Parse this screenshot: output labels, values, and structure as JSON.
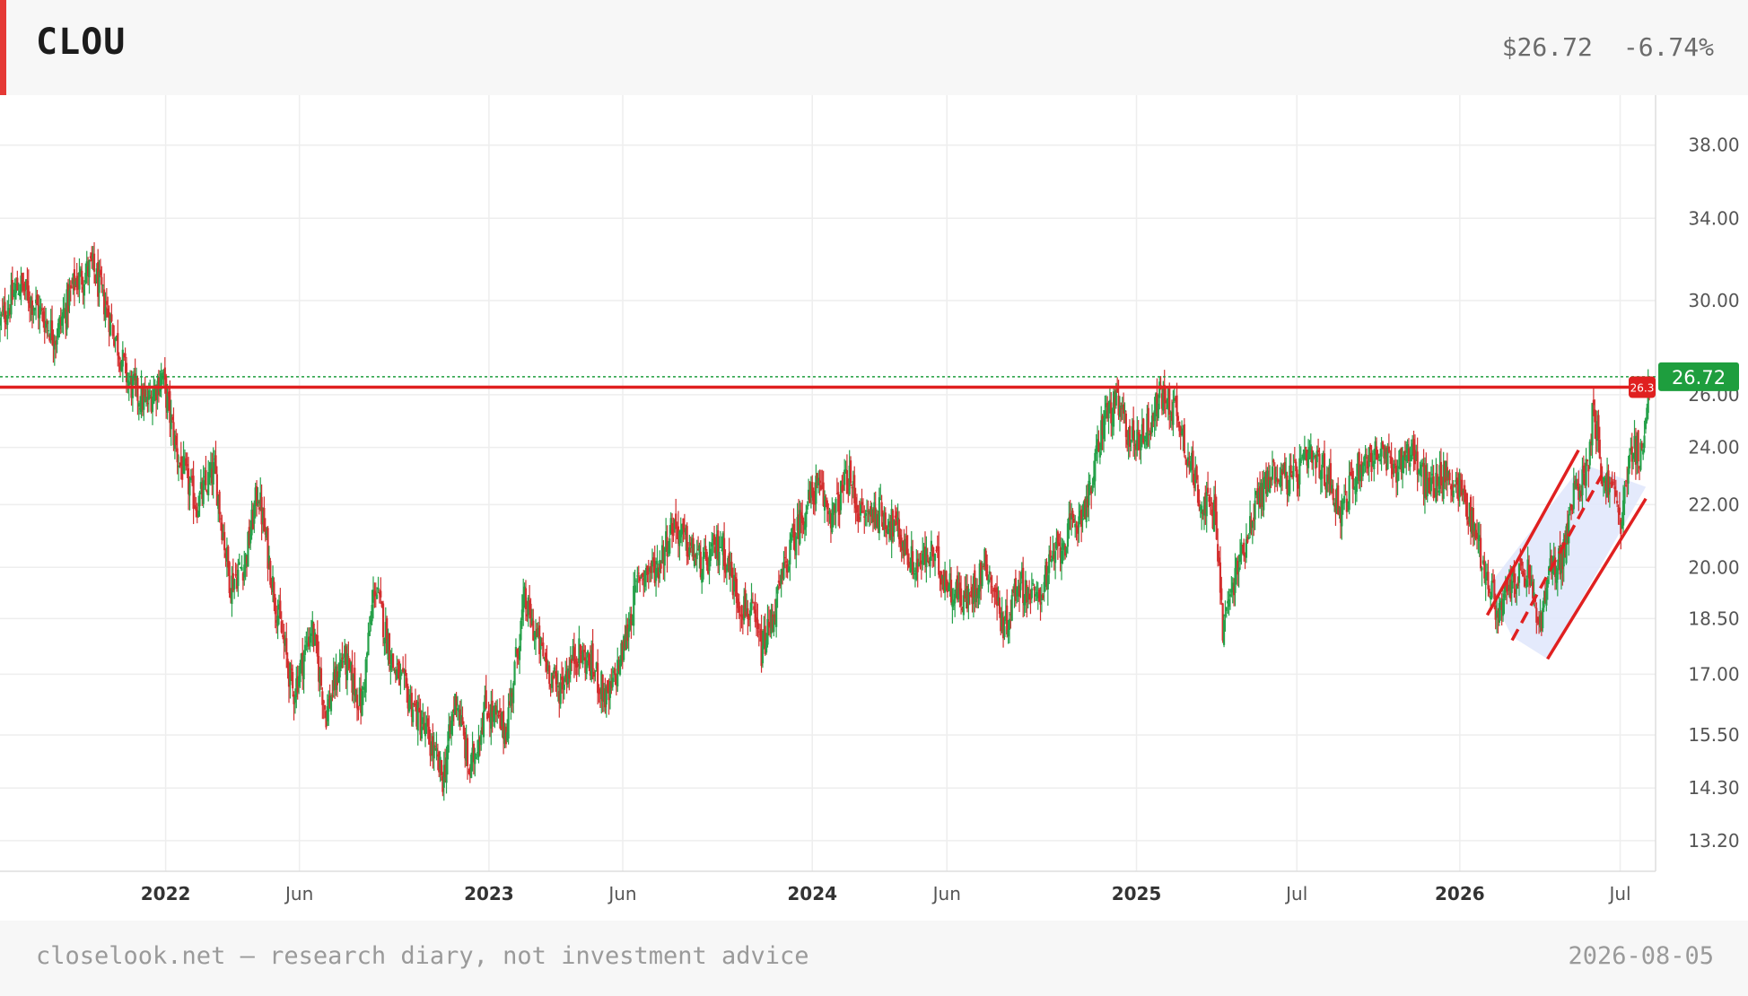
{
  "header": {
    "ticker": "CLOU",
    "price": "$26.72",
    "change": "-6.74%"
  },
  "footer": {
    "source": "closelook.net — research diary, not investment advice",
    "date": "2026-08-05"
  },
  "colors": {
    "up": "#26a14a",
    "down": "#d32f2f",
    "level_line": "#e02020",
    "last_price_tag": "#1e9e3e",
    "channel_fill": "#dfe6fb",
    "accent": "#e53935"
  },
  "chart_data": {
    "type": "candlestick",
    "title": "",
    "xlabel": "",
    "ylabel": "",
    "y_scale": "log",
    "ylim": [
      12.6,
      41.0
    ],
    "yticks": [
      13.2,
      14.3,
      15.5,
      17.0,
      18.5,
      20.0,
      22.0,
      24.0,
      26.0,
      30.0,
      34.0,
      38.0
    ],
    "ytick_labels": [
      "13.20",
      "14.30",
      "15.50",
      "17.00",
      "18.50",
      "20.00",
      "22.00",
      "24.00",
      "26.00",
      "30.00",
      "34.00",
      "38.00"
    ],
    "xlim": [
      "2021-06-28",
      "2026-08-10"
    ],
    "xticks": [
      {
        "date": "2022-01-01",
        "label": "2022",
        "major": true
      },
      {
        "date": "2022-06-01",
        "label": "Jun",
        "major": false
      },
      {
        "date": "2023-01-01",
        "label": "2023",
        "major": true
      },
      {
        "date": "2023-06-01",
        "label": "Jun",
        "major": false
      },
      {
        "date": "2024-01-01",
        "label": "2024",
        "major": true
      },
      {
        "date": "2024-06-01",
        "label": "Jun",
        "major": false
      },
      {
        "date": "2025-01-01",
        "label": "2025",
        "major": true
      },
      {
        "date": "2025-07-01",
        "label": "Jul",
        "major": false
      },
      {
        "date": "2026-01-01",
        "label": "2026",
        "major": true
      },
      {
        "date": "2026-07-01",
        "label": "Jul",
        "major": false
      }
    ],
    "price_path": [
      [
        "2021-06-28",
        29.0
      ],
      [
        "2021-07-20",
        30.8
      ],
      [
        "2021-08-10",
        29.6
      ],
      [
        "2021-08-30",
        28.4
      ],
      [
        "2021-09-20",
        30.8
      ],
      [
        "2021-10-10",
        31.6
      ],
      [
        "2021-10-30",
        29.2
      ],
      [
        "2021-11-20",
        26.5
      ],
      [
        "2021-12-10",
        25.6
      ],
      [
        "2021-12-28",
        26.8
      ],
      [
        "2022-01-15",
        23.6
      ],
      [
        "2022-02-05",
        22.0
      ],
      [
        "2022-02-25",
        23.2
      ],
      [
        "2022-03-15",
        19.5
      ],
      [
        "2022-04-01",
        20.2
      ],
      [
        "2022-04-15",
        22.5
      ],
      [
        "2022-05-05",
        19.0
      ],
      [
        "2022-05-25",
        16.5
      ],
      [
        "2022-06-15",
        18.3
      ],
      [
        "2022-07-01",
        16.0
      ],
      [
        "2022-07-20",
        17.5
      ],
      [
        "2022-08-10",
        16.2
      ],
      [
        "2022-08-25",
        19.5
      ],
      [
        "2022-09-15",
        17.2
      ],
      [
        "2022-10-05",
        16.3
      ],
      [
        "2022-10-25",
        15.4
      ],
      [
        "2022-11-10",
        14.5
      ],
      [
        "2022-11-25",
        16.5
      ],
      [
        "2022-12-10",
        14.6
      ],
      [
        "2022-12-28",
        16.2
      ],
      [
        "2023-01-20",
        15.6
      ],
      [
        "2023-02-10",
        19.0
      ],
      [
        "2023-03-01",
        17.6
      ],
      [
        "2023-03-20",
        16.6
      ],
      [
        "2023-04-10",
        17.6
      ],
      [
        "2023-04-28",
        17.2
      ],
      [
        "2023-05-15",
        16.3
      ],
      [
        "2023-06-01",
        17.6
      ],
      [
        "2023-06-20",
        19.8
      ],
      [
        "2023-07-10",
        20.0
      ],
      [
        "2023-07-28",
        21.4
      ],
      [
        "2023-08-15",
        20.6
      ],
      [
        "2023-09-01",
        20.0
      ],
      [
        "2023-09-20",
        20.8
      ],
      [
        "2023-10-10",
        19.0
      ],
      [
        "2023-10-25",
        18.6
      ],
      [
        "2023-11-05",
        17.6
      ],
      [
        "2023-11-20",
        18.8
      ],
      [
        "2023-12-05",
        20.4
      ],
      [
        "2023-12-20",
        21.6
      ],
      [
        "2024-01-05",
        22.6
      ],
      [
        "2024-01-25",
        21.6
      ],
      [
        "2024-02-10",
        23.0
      ],
      [
        "2024-02-25",
        21.6
      ],
      [
        "2024-03-15",
        21.8
      ],
      [
        "2024-04-05",
        21.2
      ],
      [
        "2024-04-25",
        20.0
      ],
      [
        "2024-05-15",
        20.4
      ],
      [
        "2024-06-05",
        19.4
      ],
      [
        "2024-06-25",
        19.0
      ],
      [
        "2024-07-15",
        20.2
      ],
      [
        "2024-08-05",
        18.2
      ],
      [
        "2024-08-20",
        19.6
      ],
      [
        "2024-09-10",
        19.0
      ],
      [
        "2024-10-01",
        20.4
      ],
      [
        "2024-10-25",
        21.4
      ],
      [
        "2024-11-10",
        22.4
      ],
      [
        "2024-11-25",
        25.2
      ],
      [
        "2024-12-10",
        25.6
      ],
      [
        "2024-12-28",
        24.2
      ],
      [
        "2025-01-15",
        24.8
      ],
      [
        "2025-01-28",
        26.0
      ],
      [
        "2025-02-15",
        25.4
      ],
      [
        "2025-03-01",
        23.6
      ],
      [
        "2025-03-15",
        22.2
      ],
      [
        "2025-04-01",
        21.6
      ],
      [
        "2025-04-08",
        18.2
      ],
      [
        "2025-04-25",
        20.0
      ],
      [
        "2025-05-15",
        22.0
      ],
      [
        "2025-06-05",
        23.2
      ],
      [
        "2025-06-25",
        22.8
      ],
      [
        "2025-07-15",
        23.6
      ],
      [
        "2025-08-05",
        23.0
      ],
      [
        "2025-08-20",
        21.8
      ],
      [
        "2025-09-10",
        23.4
      ],
      [
        "2025-09-30",
        23.8
      ],
      [
        "2025-10-20",
        23.2
      ],
      [
        "2025-11-05",
        24.0
      ],
      [
        "2025-11-25",
        22.6
      ],
      [
        "2025-12-15",
        23.0
      ],
      [
        "2026-01-01",
        22.6
      ],
      [
        "2026-01-20",
        21.0
      ],
      [
        "2026-02-01",
        19.6
      ],
      [
        "2026-02-15",
        18.6
      ],
      [
        "2026-03-01",
        19.6
      ],
      [
        "2026-03-20",
        19.8
      ],
      [
        "2026-04-01",
        18.2
      ],
      [
        "2026-04-12",
        19.8
      ],
      [
        "2026-04-28",
        20.4
      ],
      [
        "2026-05-10",
        22.4
      ],
      [
        "2026-05-25",
        23.2
      ],
      [
        "2026-06-01",
        25.8
      ],
      [
        "2026-06-10",
        23.0
      ],
      [
        "2026-06-25",
        22.4
      ],
      [
        "2026-07-01",
        21.4
      ],
      [
        "2026-07-15",
        24.0
      ],
      [
        "2026-07-25",
        23.8
      ],
      [
        "2026-08-05",
        26.72
      ]
    ],
    "annotations": {
      "last_price": {
        "value": 26.72,
        "label": "26.72"
      },
      "horizontal_level": {
        "value": 26.3,
        "label": "26.3"
      },
      "channel": {
        "upper": [
          [
            "2026-02-01",
            18.6
          ],
          [
            "2026-05-15",
            23.9
          ]
        ],
        "lower": [
          [
            "2026-04-10",
            17.4
          ],
          [
            "2026-07-30",
            22.2
          ]
        ],
        "midline": [
          [
            "2026-03-01",
            17.9
          ],
          [
            "2026-06-10",
            23.0
          ]
        ],
        "fill_region": [
          [
            "2026-02-01",
            19.4
          ],
          [
            "2026-05-20",
            23.4
          ],
          [
            "2026-07-30",
            22.6
          ],
          [
            "2026-04-10",
            17.4
          ],
          [
            "2026-03-01",
            18.0
          ]
        ]
      }
    }
  }
}
